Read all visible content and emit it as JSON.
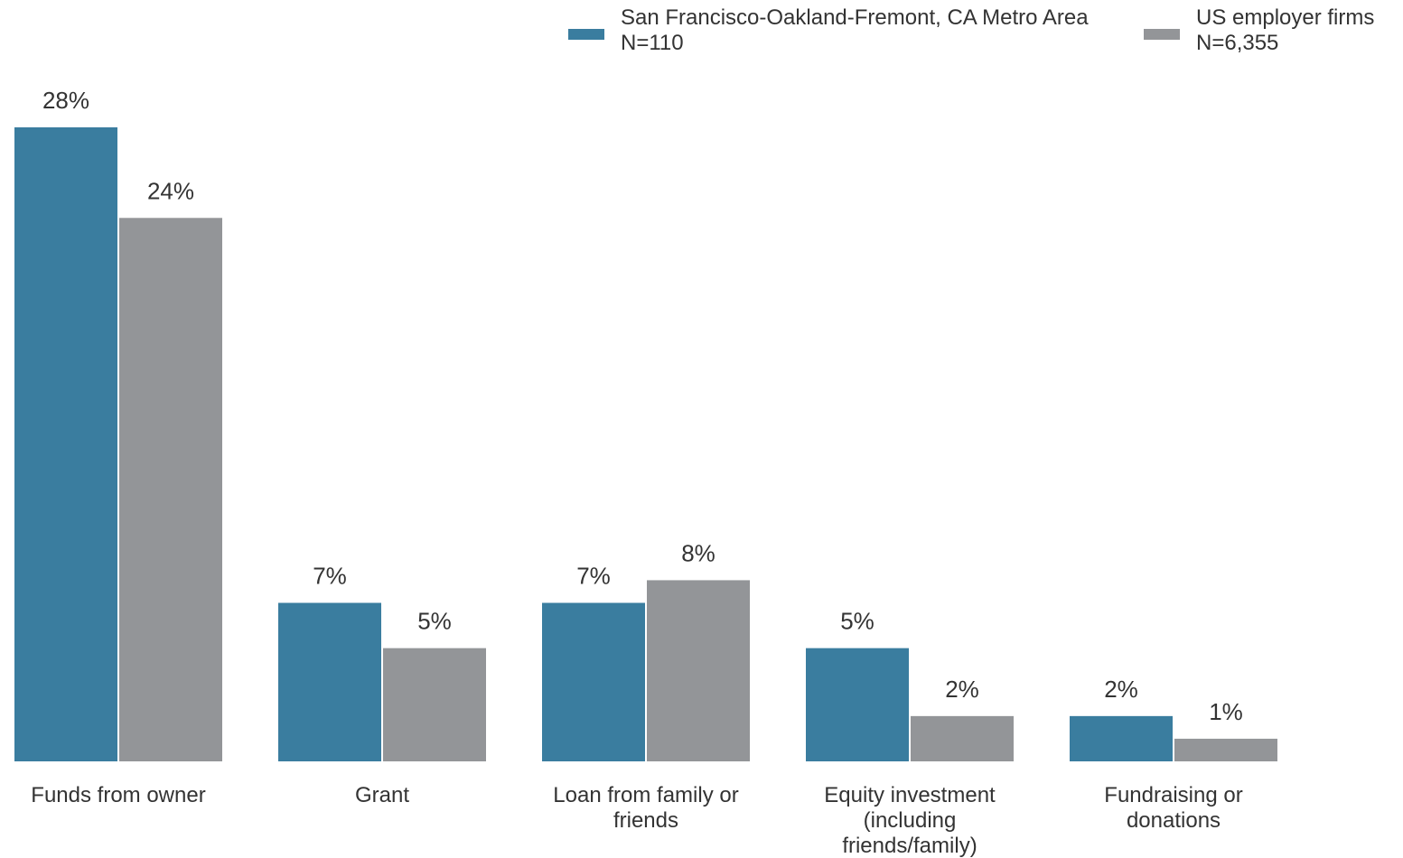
{
  "chart_data": {
    "type": "bar",
    "title": "",
    "xlabel": "",
    "ylabel": "",
    "unit": "%",
    "categories": [
      [
        "Funds from owner"
      ],
      [
        "Grant"
      ],
      [
        "Loan from family or",
        "friends"
      ],
      [
        "Equity investment",
        "(including",
        "friends/family)"
      ],
      [
        "Fundraising or",
        "donations"
      ]
    ],
    "series": [
      {
        "name": "San Francisco-Oakland-Fremont, CA Metro Area",
        "note": "N=110",
        "color": "#3a7d9f",
        "values": [
          28,
          7,
          7,
          5,
          2
        ]
      },
      {
        "name": "US employer firms",
        "note": "N=6,355",
        "color": "#939598",
        "values": [
          24,
          5,
          8,
          2,
          1
        ]
      }
    ],
    "ylim": [
      0,
      28
    ],
    "grid": false,
    "legend_position": "top-right"
  }
}
